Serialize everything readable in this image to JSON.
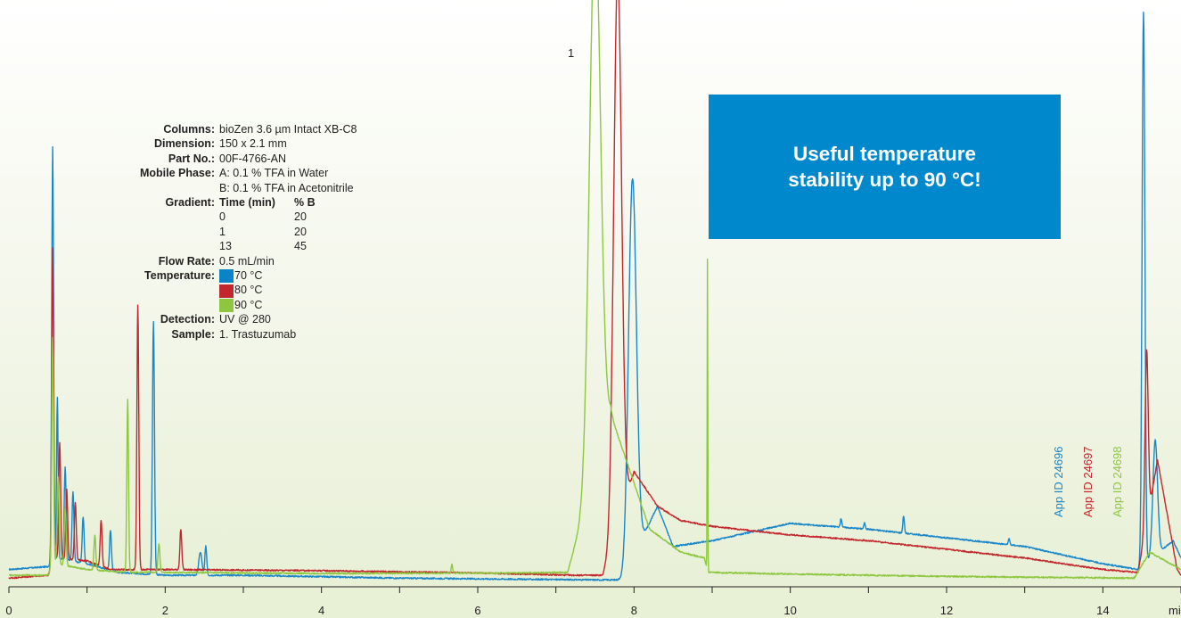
{
  "chart_data": {
    "type": "line",
    "xlabel": "min",
    "x_ticks": [
      0,
      2,
      4,
      6,
      8,
      10,
      12,
      14
    ],
    "x_range": [
      0,
      15
    ],
    "grid": false,
    "peak_label": "1",
    "series": [
      {
        "name": "70 °C",
        "color": "#1a86c8",
        "baseline": [
          [
            0,
            0.03
          ],
          [
            0.5,
            0.035
          ],
          [
            0.6,
            0.05
          ],
          [
            1.0,
            0.04
          ],
          [
            1.4,
            0.025
          ],
          [
            2.0,
            0.02
          ],
          [
            3.0,
            0.02
          ],
          [
            5.0,
            0.015
          ],
          [
            7.5,
            0.012
          ],
          [
            7.85,
            0.012
          ],
          [
            8.3,
            0.14
          ],
          [
            8.5,
            0.07
          ],
          [
            9.0,
            0.08
          ],
          [
            10.0,
            0.11
          ],
          [
            11.0,
            0.1
          ],
          [
            12.0,
            0.085
          ],
          [
            13.0,
            0.07
          ],
          [
            14.0,
            0.04
          ],
          [
            14.45,
            0.03
          ],
          [
            14.9,
            0.08
          ],
          [
            15.0,
            0.05
          ]
        ],
        "peaks": [
          [
            0.56,
            0.72,
            0.012
          ],
          [
            0.62,
            0.28,
            0.01
          ],
          [
            0.72,
            0.16,
            0.012
          ],
          [
            0.82,
            0.12,
            0.012
          ],
          [
            0.95,
            0.08,
            0.012
          ],
          [
            1.3,
            0.07,
            0.012
          ],
          [
            1.85,
            0.44,
            0.013
          ],
          [
            2.45,
            0.04,
            0.02
          ],
          [
            2.52,
            0.05,
            0.012
          ],
          [
            7.98,
            0.66,
            0.05
          ],
          [
            10.65,
            0.015,
            0.01
          ],
          [
            10.95,
            0.01,
            0.01
          ],
          [
            11.45,
            0.03,
            0.01
          ],
          [
            12.8,
            0.01,
            0.01
          ],
          [
            14.52,
            0.96,
            0.018
          ],
          [
            14.67,
            0.2,
            0.03
          ]
        ]
      },
      {
        "name": "80 °C",
        "color": "#c1272d",
        "baseline": [
          [
            0,
            0.015
          ],
          [
            0.5,
            0.02
          ],
          [
            0.6,
            0.05
          ],
          [
            1.0,
            0.045
          ],
          [
            1.3,
            0.03
          ],
          [
            2.0,
            0.03
          ],
          [
            4.0,
            0.028
          ],
          [
            6.0,
            0.024
          ],
          [
            7.2,
            0.02
          ],
          [
            7.6,
            0.02
          ],
          [
            8.0,
            0.2
          ],
          [
            8.3,
            0.14
          ],
          [
            8.6,
            0.115
          ],
          [
            9.0,
            0.105
          ],
          [
            10.0,
            0.09
          ],
          [
            11.0,
            0.08
          ],
          [
            12.0,
            0.065
          ],
          [
            13.0,
            0.05
          ],
          [
            14.0,
            0.03
          ],
          [
            14.45,
            0.025
          ],
          [
            14.7,
            0.22
          ],
          [
            14.95,
            0.03
          ],
          [
            15.0,
            0.02
          ]
        ],
        "peaks": [
          [
            0.56,
            0.55,
            0.012
          ],
          [
            0.65,
            0.2,
            0.012
          ],
          [
            0.74,
            0.12,
            0.012
          ],
          [
            0.85,
            0.1,
            0.012
          ],
          [
            1.18,
            0.08,
            0.012
          ],
          [
            1.65,
            0.46,
            0.012
          ],
          [
            2.2,
            0.07,
            0.012
          ],
          [
            7.79,
            0.96,
            0.05
          ],
          [
            14.56,
            0.3,
            0.02
          ]
        ]
      },
      {
        "name": "90 °C",
        "color": "#8dc63f",
        "baseline": [
          [
            0,
            0.02
          ],
          [
            0.5,
            0.02
          ],
          [
            0.6,
            0.04
          ],
          [
            1.0,
            0.03
          ],
          [
            1.5,
            0.025
          ],
          [
            2.0,
            0.025
          ],
          [
            4.0,
            0.023
          ],
          [
            6.5,
            0.024
          ],
          [
            7.15,
            0.025
          ],
          [
            7.7,
            0.3
          ],
          [
            8.2,
            0.1
          ],
          [
            8.6,
            0.06
          ],
          [
            8.9,
            0.05
          ],
          [
            8.95,
            0.025
          ],
          [
            10.0,
            0.022
          ],
          [
            12.0,
            0.018
          ],
          [
            14.4,
            0.015
          ],
          [
            14.6,
            0.06
          ],
          [
            15.0,
            0.03
          ]
        ],
        "peaks": [
          [
            0.56,
            0.4,
            0.012
          ],
          [
            0.63,
            0.15,
            0.012
          ],
          [
            0.72,
            0.1,
            0.012
          ],
          [
            1.1,
            0.06,
            0.012
          ],
          [
            1.52,
            0.3,
            0.011
          ],
          [
            1.92,
            0.05,
            0.012
          ],
          [
            5.67,
            0.015,
            0.01
          ],
          [
            7.5,
            0.96,
            0.07
          ],
          [
            8.94,
            0.54,
            0.004
          ]
        ]
      }
    ]
  },
  "conditions": {
    "columns_label": "Columns:",
    "columns_value": "bioZen 3.6 µm Intact XB-C8",
    "dimension_label": "Dimension:",
    "dimension_value": "150 x 2.1 mm",
    "partno_label": "Part No.:",
    "partno_value": "00F-4766-AN",
    "mobile_label": "Mobile Phase:",
    "mobile_a": "A: 0.1 % TFA in Water",
    "mobile_b": "B: 0.1 % TFA in Acetonitrile",
    "gradient_label": "Gradient:",
    "gradient_header": [
      "Time (min)",
      "% B"
    ],
    "gradient_rows": [
      [
        "0",
        "20"
      ],
      [
        "1",
        "20"
      ],
      [
        "13",
        "45"
      ]
    ],
    "flow_label": "Flow Rate:",
    "flow_value": "0.5 mL/min",
    "temperature_label": "Temperature:",
    "temperatures": [
      {
        "label": "70 °C",
        "color": "#0a84c6"
      },
      {
        "label": "80 °C",
        "color": "#c1272d"
      },
      {
        "label": "90 °C",
        "color": "#8dc63f"
      }
    ],
    "detection_label": "Detection:",
    "detection_value": "UV @ 280",
    "sample_label": "Sample:",
    "sample_value": "1. Trastuzumab"
  },
  "callout": {
    "line1": "Useful temperature",
    "line2": "stability up to 90 °C!"
  },
  "app_ids": [
    {
      "text": "App ID 24696",
      "color": "#1a86c8"
    },
    {
      "text": "App ID 24697",
      "color": "#c1272d"
    },
    {
      "text": "App ID 24698",
      "color": "#8dc63f"
    }
  ]
}
